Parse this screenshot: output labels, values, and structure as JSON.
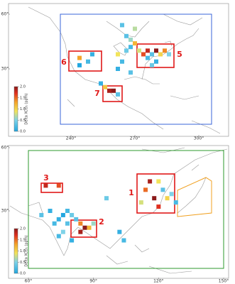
{
  "panels": [
    {
      "lat_ticks": [
        {
          "value": 60,
          "label": "60°"
        },
        {
          "value": 30,
          "label": "30°"
        }
      ],
      "lon_ticks": [
        {
          "value": 240,
          "label": "240°"
        },
        {
          "value": 270,
          "label": "270°"
        },
        {
          "value": 300,
          "label": "300°"
        }
      ],
      "colorbar": {
        "label": "Delta XCO₂ (ppm)",
        "ticks": [
          {
            "value": 0,
            "label": "0.0"
          },
          {
            "value": 0.5,
            "label": "0.5"
          },
          {
            "value": 1,
            "label": "1.0"
          },
          {
            "value": 1.5,
            "label": "1.5"
          },
          {
            "value": 2,
            "label": "2.0"
          }
        ]
      },
      "regions": [
        "5",
        "6",
        "7"
      ],
      "cells": [
        {
          "lon": 266,
          "lat": 48,
          "value": 0.3
        },
        {
          "lon": 268,
          "lat": 46,
          "value": 0.6
        },
        {
          "lon": 270,
          "lat": 44,
          "value": 1.2
        },
        {
          "lon": 268,
          "lat": 42,
          "value": 0.2
        },
        {
          "lon": 266,
          "lat": 40,
          "value": 0.4
        },
        {
          "lon": 272,
          "lat": 40,
          "value": 0.8
        },
        {
          "lon": 274,
          "lat": 38,
          "value": 1.6
        },
        {
          "lon": 276,
          "lat": 40,
          "value": 1.8
        },
        {
          "lon": 278,
          "lat": 38,
          "value": 0.3
        },
        {
          "lon": 280,
          "lat": 40,
          "value": 2.0
        },
        {
          "lon": 282,
          "lat": 38,
          "value": 1.0
        },
        {
          "lon": 284,
          "lat": 40,
          "value": 1.4
        },
        {
          "lon": 286,
          "lat": 38,
          "value": 0.5
        },
        {
          "lon": 276,
          "lat": 36,
          "value": 0.2
        },
        {
          "lon": 280,
          "lat": 34,
          "value": 0.1
        },
        {
          "lon": 278,
          "lat": 32,
          "value": 0.4
        },
        {
          "lon": 264,
          "lat": 34,
          "value": 0.2
        },
        {
          "lon": 262,
          "lat": 30,
          "value": 0.1
        },
        {
          "lon": 268,
          "lat": 28,
          "value": 0.3
        },
        {
          "lon": 262,
          "lat": 38,
          "value": 0.9
        },
        {
          "lon": 244,
          "lat": 36,
          "value": 1.3
        },
        {
          "lon": 248,
          "lat": 34,
          "value": 0.2
        },
        {
          "lon": 250,
          "lat": 38,
          "value": 0.1
        },
        {
          "lon": 244,
          "lat": 32,
          "value": 0.0
        },
        {
          "lon": 256,
          "lat": 20,
          "value": 1.1
        },
        {
          "lon": 258,
          "lat": 18,
          "value": 1.9
        },
        {
          "lon": 260,
          "lat": 18,
          "value": 2.0
        },
        {
          "lon": 262,
          "lat": 16,
          "value": 0.3
        },
        {
          "lon": 254,
          "lat": 22,
          "value": 0.1
        },
        {
          "lon": 270,
          "lat": 52,
          "value": 0.7
        },
        {
          "lon": 264,
          "lat": 54,
          "value": 0.3
        }
      ]
    },
    {
      "lat_ticks": [
        {
          "value": 60,
          "label": "60°"
        },
        {
          "value": 30,
          "label": "30°"
        }
      ],
      "lon_ticks": [
        {
          "value": 60,
          "label": "60°"
        },
        {
          "value": 90,
          "label": "90°"
        },
        {
          "value": 120,
          "label": "120°"
        },
        {
          "value": 150,
          "label": "150°"
        }
      ],
      "colorbar": {
        "label": "Delta XCO₂ (ppm)",
        "ticks": [
          {
            "value": 0,
            "label": "0.0"
          },
          {
            "value": 0.5,
            "label": "0.5"
          },
          {
            "value": 1,
            "label": "1.0"
          },
          {
            "value": 1.5,
            "label": "1.5"
          },
          {
            "value": 2,
            "label": "2.0"
          }
        ]
      },
      "regions": [
        "1",
        "2",
        "3"
      ],
      "cells": [
        {
          "lon": 116,
          "lat": 44,
          "value": 1.9
        },
        {
          "lon": 120,
          "lat": 44,
          "value": 0.9
        },
        {
          "lon": 114,
          "lat": 40,
          "value": 1.5
        },
        {
          "lon": 122,
          "lat": 40,
          "value": 0.3
        },
        {
          "lon": 118,
          "lat": 36,
          "value": 2.0
        },
        {
          "lon": 124,
          "lat": 36,
          "value": 1.0
        },
        {
          "lon": 112,
          "lat": 34,
          "value": 0.8
        },
        {
          "lon": 120,
          "lat": 32,
          "value": 1.7
        },
        {
          "lon": 126,
          "lat": 38,
          "value": 0.5
        },
        {
          "lon": 128,
          "lat": 34,
          "value": 0.2
        },
        {
          "lon": 96,
          "lat": 36,
          "value": 0.4
        },
        {
          "lon": 68,
          "lat": 42,
          "value": 1.8
        },
        {
          "lon": 74,
          "lat": 42,
          "value": 1.6
        },
        {
          "lon": 82,
          "lat": 26,
          "value": 0.3
        },
        {
          "lon": 84,
          "lat": 24,
          "value": 1.4
        },
        {
          "lon": 86,
          "lat": 22,
          "value": 2.0
        },
        {
          "lon": 88,
          "lat": 22,
          "value": 1.2
        },
        {
          "lon": 90,
          "lat": 24,
          "value": 0.6
        },
        {
          "lon": 84,
          "lat": 20,
          "value": 1.9
        },
        {
          "lon": 78,
          "lat": 30,
          "value": 0.2
        },
        {
          "lon": 76,
          "lat": 28,
          "value": 0.0
        },
        {
          "lon": 80,
          "lat": 28,
          "value": 0.4
        },
        {
          "lon": 74,
          "lat": 26,
          "value": 0.1
        },
        {
          "lon": 72,
          "lat": 24,
          "value": 0.2
        },
        {
          "lon": 78,
          "lat": 24,
          "value": 0.3
        },
        {
          "lon": 76,
          "lat": 20,
          "value": 0.5
        },
        {
          "lon": 80,
          "lat": 16,
          "value": 0.1
        },
        {
          "lon": 74,
          "lat": 18,
          "value": 0.2
        },
        {
          "lon": 66,
          "lat": 28,
          "value": 0.3
        },
        {
          "lon": 70,
          "lat": 30,
          "value": 0.1
        },
        {
          "lon": 104,
          "lat": 16,
          "value": 0.2
        },
        {
          "lon": 102,
          "lat": 20,
          "value": 0.1
        }
      ]
    }
  ]
}
